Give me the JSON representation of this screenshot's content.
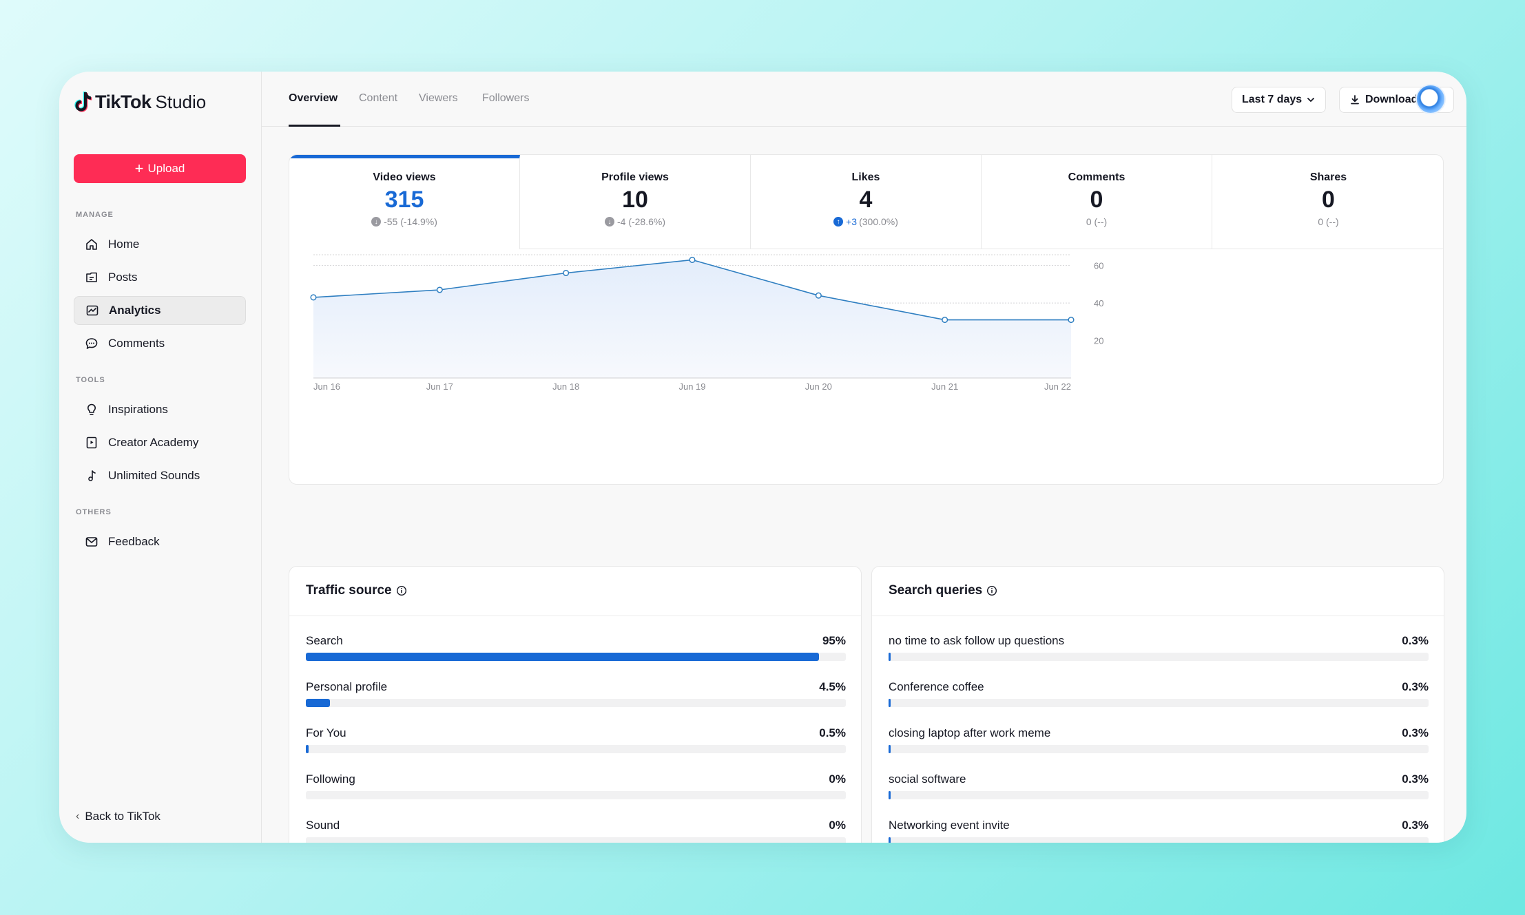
{
  "app": {
    "logo_bold": "TikTok",
    "logo_light": "Studio"
  },
  "sidebar": {
    "upload_label": "Upload",
    "manage_label": "MANAGE",
    "tools_label": "TOOLS",
    "others_label": "OTHERS",
    "manage_items": [
      {
        "label": "Home",
        "icon": "home-icon"
      },
      {
        "label": "Posts",
        "icon": "posts-icon"
      },
      {
        "label": "Analytics",
        "icon": "analytics-icon",
        "active": true
      },
      {
        "label": "Comments",
        "icon": "comments-icon"
      }
    ],
    "tools_items": [
      {
        "label": "Inspirations",
        "icon": "lightbulb-icon"
      },
      {
        "label": "Creator Academy",
        "icon": "academy-icon"
      },
      {
        "label": "Unlimited Sounds",
        "icon": "music-note-icon"
      }
    ],
    "others_items": [
      {
        "label": "Feedback",
        "icon": "feedback-icon"
      }
    ],
    "back_label": "Back to TikTok"
  },
  "header": {
    "tabs": [
      "Overview",
      "Content",
      "Viewers",
      "Followers"
    ],
    "active_tab": "Overview",
    "range_label": "Last 7 days",
    "download_label": "Download data"
  },
  "metrics": [
    {
      "label": "Video views",
      "value": "315",
      "delta": "-55 (-14.9%)",
      "direction": "down"
    },
    {
      "label": "Profile views",
      "value": "10",
      "delta": "-4 (-28.6%)",
      "direction": "down"
    },
    {
      "label": "Likes",
      "value": "4",
      "delta_pos": "+3",
      "delta": "(300.0%)",
      "direction": "up"
    },
    {
      "label": "Comments",
      "value": "0",
      "delta": "0 (--)",
      "direction": "none"
    },
    {
      "label": "Shares",
      "value": "0",
      "delta": "0 (--)",
      "direction": "none"
    }
  ],
  "chart_data": {
    "type": "area",
    "title": "Video views",
    "categories": [
      "Jun 16",
      "Jun 17",
      "Jun 18",
      "Jun 19",
      "Jun 20",
      "Jun 21",
      "Jun 22"
    ],
    "series": [
      {
        "name": "Video views",
        "values": [
          43,
          47,
          56,
          63,
          44,
          31,
          31
        ]
      }
    ],
    "yticks": [
      20,
      40,
      60
    ],
    "ylim": [
      0,
      65
    ],
    "colors": {
      "line": "#2f7fc1",
      "fill": "#e8f0fb"
    }
  },
  "traffic": {
    "title": "Traffic source",
    "rows": [
      {
        "label": "Search",
        "value": "95%",
        "pct": 95
      },
      {
        "label": "Personal profile",
        "value": "4.5%",
        "pct": 4.5
      },
      {
        "label": "For You",
        "value": "0.5%",
        "pct": 0.5
      },
      {
        "label": "Following",
        "value": "0%",
        "pct": 0
      },
      {
        "label": "Sound",
        "value": "0%",
        "pct": 0
      }
    ]
  },
  "queries": {
    "title": "Search queries",
    "rows": [
      {
        "label": "no time to ask follow up questions",
        "value": "0.3%",
        "pct": 0.3
      },
      {
        "label": "Conference coffee",
        "value": "0.3%",
        "pct": 0.3
      },
      {
        "label": "closing laptop after work meme",
        "value": "0.3%",
        "pct": 0.3
      },
      {
        "label": "social software",
        "value": "0.3%",
        "pct": 0.3
      },
      {
        "label": "Networking event invite",
        "value": "0.3%",
        "pct": 0.3
      }
    ]
  },
  "colors": {
    "accent": "#1869d5",
    "upload": "#fe2c55"
  }
}
